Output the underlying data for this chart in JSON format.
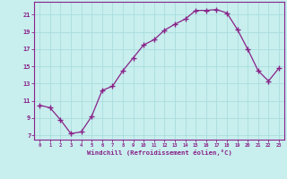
{
  "x": [
    0,
    1,
    2,
    3,
    4,
    5,
    6,
    7,
    8,
    9,
    10,
    11,
    12,
    13,
    14,
    15,
    16,
    17,
    18,
    19,
    20,
    21,
    22,
    23
  ],
  "y": [
    10.5,
    10.2,
    8.8,
    7.2,
    7.4,
    9.2,
    12.2,
    12.7,
    14.5,
    16.0,
    17.5,
    18.1,
    19.2,
    19.9,
    20.5,
    21.5,
    21.5,
    21.6,
    21.2,
    19.3,
    17.0,
    14.5,
    13.3,
    14.8
  ],
  "line_color": "#882288",
  "marker": "+",
  "marker_size": 4,
  "bg_color": "#c8eeee",
  "grid_color": "#aadddd",
  "xlabel": "Windchill (Refroidissement éolien,°C)",
  "xlabel_color": "#882288",
  "tick_color": "#882288",
  "ylim": [
    6.5,
    22.5
  ],
  "yticks": [
    7,
    9,
    11,
    13,
    15,
    17,
    19,
    21
  ],
  "xtick_labels": [
    "0",
    "1",
    "2",
    "3",
    "4",
    "5",
    "6",
    "7",
    "8",
    "9",
    "10",
    "11",
    "12",
    "13",
    "14",
    "15",
    "16",
    "17",
    "18",
    "19",
    "20",
    "21",
    "22",
    "23"
  ],
  "spine_color": "#882288",
  "xlim": [
    -0.5,
    23.5
  ]
}
